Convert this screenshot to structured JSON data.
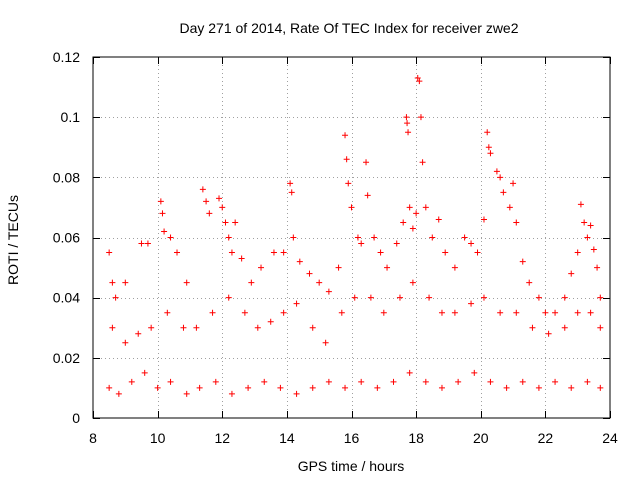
{
  "chart_data": {
    "type": "scatter",
    "title": "Day 271 of 2014, Rate Of TEC Index for receiver zwe2",
    "xlabel": "GPS time / hours",
    "ylabel": "ROTI / TECUs",
    "xlim": [
      8,
      24
    ],
    "ylim": [
      0,
      0.12
    ],
    "xticks": [
      "8",
      "10",
      "12",
      "14",
      "16",
      "18",
      "20",
      "22",
      "24"
    ],
    "yticks": [
      "0",
      "0.02",
      "0.04",
      "0.06",
      "0.08",
      "0.1",
      "0.12"
    ],
    "grid": true,
    "marker": "plus",
    "color": "#ff0000",
    "series": [
      {
        "name": "ROTI",
        "points": [
          [
            8.5,
            0.055
          ],
          [
            8.6,
            0.045
          ],
          [
            8.7,
            0.04
          ],
          [
            9.0,
            0.045
          ],
          [
            9.5,
            0.058
          ],
          [
            9.7,
            0.058
          ],
          [
            10.1,
            0.072
          ],
          [
            10.15,
            0.068
          ],
          [
            10.2,
            0.062
          ],
          [
            10.4,
            0.06
          ],
          [
            10.6,
            0.055
          ],
          [
            10.9,
            0.045
          ],
          [
            11.4,
            0.076
          ],
          [
            11.5,
            0.072
          ],
          [
            11.6,
            0.068
          ],
          [
            11.9,
            0.073
          ],
          [
            12.0,
            0.07
          ],
          [
            12.1,
            0.065
          ],
          [
            12.2,
            0.06
          ],
          [
            12.3,
            0.055
          ],
          [
            12.4,
            0.065
          ],
          [
            12.6,
            0.053
          ],
          [
            12.9,
            0.045
          ],
          [
            13.2,
            0.05
          ],
          [
            13.6,
            0.055
          ],
          [
            13.9,
            0.055
          ],
          [
            14.1,
            0.078
          ],
          [
            14.15,
            0.075
          ],
          [
            14.2,
            0.06
          ],
          [
            14.4,
            0.052
          ],
          [
            14.7,
            0.048
          ],
          [
            15.0,
            0.045
          ],
          [
            15.3,
            0.042
          ],
          [
            15.6,
            0.05
          ],
          [
            15.8,
            0.094
          ],
          [
            15.85,
            0.086
          ],
          [
            15.9,
            0.078
          ],
          [
            16.0,
            0.07
          ],
          [
            16.2,
            0.06
          ],
          [
            16.3,
            0.058
          ],
          [
            16.45,
            0.085
          ],
          [
            16.5,
            0.074
          ],
          [
            16.7,
            0.06
          ],
          [
            16.9,
            0.055
          ],
          [
            17.1,
            0.05
          ],
          [
            17.4,
            0.058
          ],
          [
            17.6,
            0.065
          ],
          [
            17.7,
            0.1
          ],
          [
            17.72,
            0.098
          ],
          [
            17.75,
            0.095
          ],
          [
            17.8,
            0.07
          ],
          [
            17.9,
            0.063
          ],
          [
            18.0,
            0.068
          ],
          [
            18.05,
            0.113
          ],
          [
            18.1,
            0.112
          ],
          [
            18.15,
            0.1
          ],
          [
            18.2,
            0.085
          ],
          [
            18.3,
            0.07
          ],
          [
            18.5,
            0.06
          ],
          [
            18.7,
            0.066
          ],
          [
            18.9,
            0.055
          ],
          [
            19.2,
            0.05
          ],
          [
            19.5,
            0.06
          ],
          [
            19.7,
            0.058
          ],
          [
            19.9,
            0.055
          ],
          [
            20.1,
            0.066
          ],
          [
            20.2,
            0.095
          ],
          [
            20.25,
            0.09
          ],
          [
            20.3,
            0.088
          ],
          [
            20.5,
            0.082
          ],
          [
            20.6,
            0.08
          ],
          [
            20.7,
            0.075
          ],
          [
            20.9,
            0.07
          ],
          [
            21.0,
            0.078
          ],
          [
            21.1,
            0.065
          ],
          [
            21.3,
            0.052
          ],
          [
            21.5,
            0.045
          ],
          [
            21.8,
            0.04
          ],
          [
            22.0,
            0.035
          ],
          [
            22.3,
            0.035
          ],
          [
            22.6,
            0.04
          ],
          [
            22.8,
            0.048
          ],
          [
            23.0,
            0.055
          ],
          [
            23.1,
            0.071
          ],
          [
            23.2,
            0.065
          ],
          [
            23.3,
            0.06
          ],
          [
            23.4,
            0.064
          ],
          [
            23.5,
            0.056
          ],
          [
            23.6,
            0.05
          ],
          [
            23.7,
            0.04
          ],
          [
            8.6,
            0.03
          ],
          [
            9.0,
            0.025
          ],
          [
            9.4,
            0.028
          ],
          [
            9.8,
            0.03
          ],
          [
            10.3,
            0.035
          ],
          [
            10.8,
            0.03
          ],
          [
            11.2,
            0.03
          ],
          [
            11.7,
            0.035
          ],
          [
            12.2,
            0.04
          ],
          [
            12.7,
            0.035
          ],
          [
            13.1,
            0.03
          ],
          [
            13.5,
            0.032
          ],
          [
            13.9,
            0.035
          ],
          [
            14.3,
            0.038
          ],
          [
            14.8,
            0.03
          ],
          [
            15.2,
            0.025
          ],
          [
            15.7,
            0.035
          ],
          [
            16.1,
            0.04
          ],
          [
            16.6,
            0.04
          ],
          [
            17.0,
            0.035
          ],
          [
            17.5,
            0.04
          ],
          [
            17.9,
            0.045
          ],
          [
            18.4,
            0.04
          ],
          [
            18.8,
            0.035
          ],
          [
            19.2,
            0.035
          ],
          [
            19.7,
            0.038
          ],
          [
            20.1,
            0.04
          ],
          [
            20.6,
            0.035
          ],
          [
            21.1,
            0.035
          ],
          [
            21.6,
            0.03
          ],
          [
            22.1,
            0.028
          ],
          [
            22.6,
            0.03
          ],
          [
            23.0,
            0.035
          ],
          [
            23.4,
            0.035
          ],
          [
            23.7,
            0.03
          ],
          [
            8.5,
            0.01
          ],
          [
            8.8,
            0.008
          ],
          [
            9.2,
            0.012
          ],
          [
            9.6,
            0.015
          ],
          [
            10.0,
            0.01
          ],
          [
            10.4,
            0.012
          ],
          [
            10.9,
            0.008
          ],
          [
            11.3,
            0.01
          ],
          [
            11.8,
            0.012
          ],
          [
            12.3,
            0.008
          ],
          [
            12.8,
            0.01
          ],
          [
            13.3,
            0.012
          ],
          [
            13.8,
            0.01
          ],
          [
            14.3,
            0.008
          ],
          [
            14.8,
            0.01
          ],
          [
            15.3,
            0.012
          ],
          [
            15.8,
            0.01
          ],
          [
            16.3,
            0.012
          ],
          [
            16.8,
            0.01
          ],
          [
            17.3,
            0.012
          ],
          [
            17.8,
            0.015
          ],
          [
            18.3,
            0.012
          ],
          [
            18.8,
            0.01
          ],
          [
            19.3,
            0.012
          ],
          [
            19.8,
            0.015
          ],
          [
            20.3,
            0.012
          ],
          [
            20.8,
            0.01
          ],
          [
            21.3,
            0.012
          ],
          [
            21.8,
            0.01
          ],
          [
            22.3,
            0.012
          ],
          [
            22.8,
            0.01
          ],
          [
            23.3,
            0.012
          ],
          [
            23.7,
            0.01
          ]
        ]
      }
    ]
  }
}
